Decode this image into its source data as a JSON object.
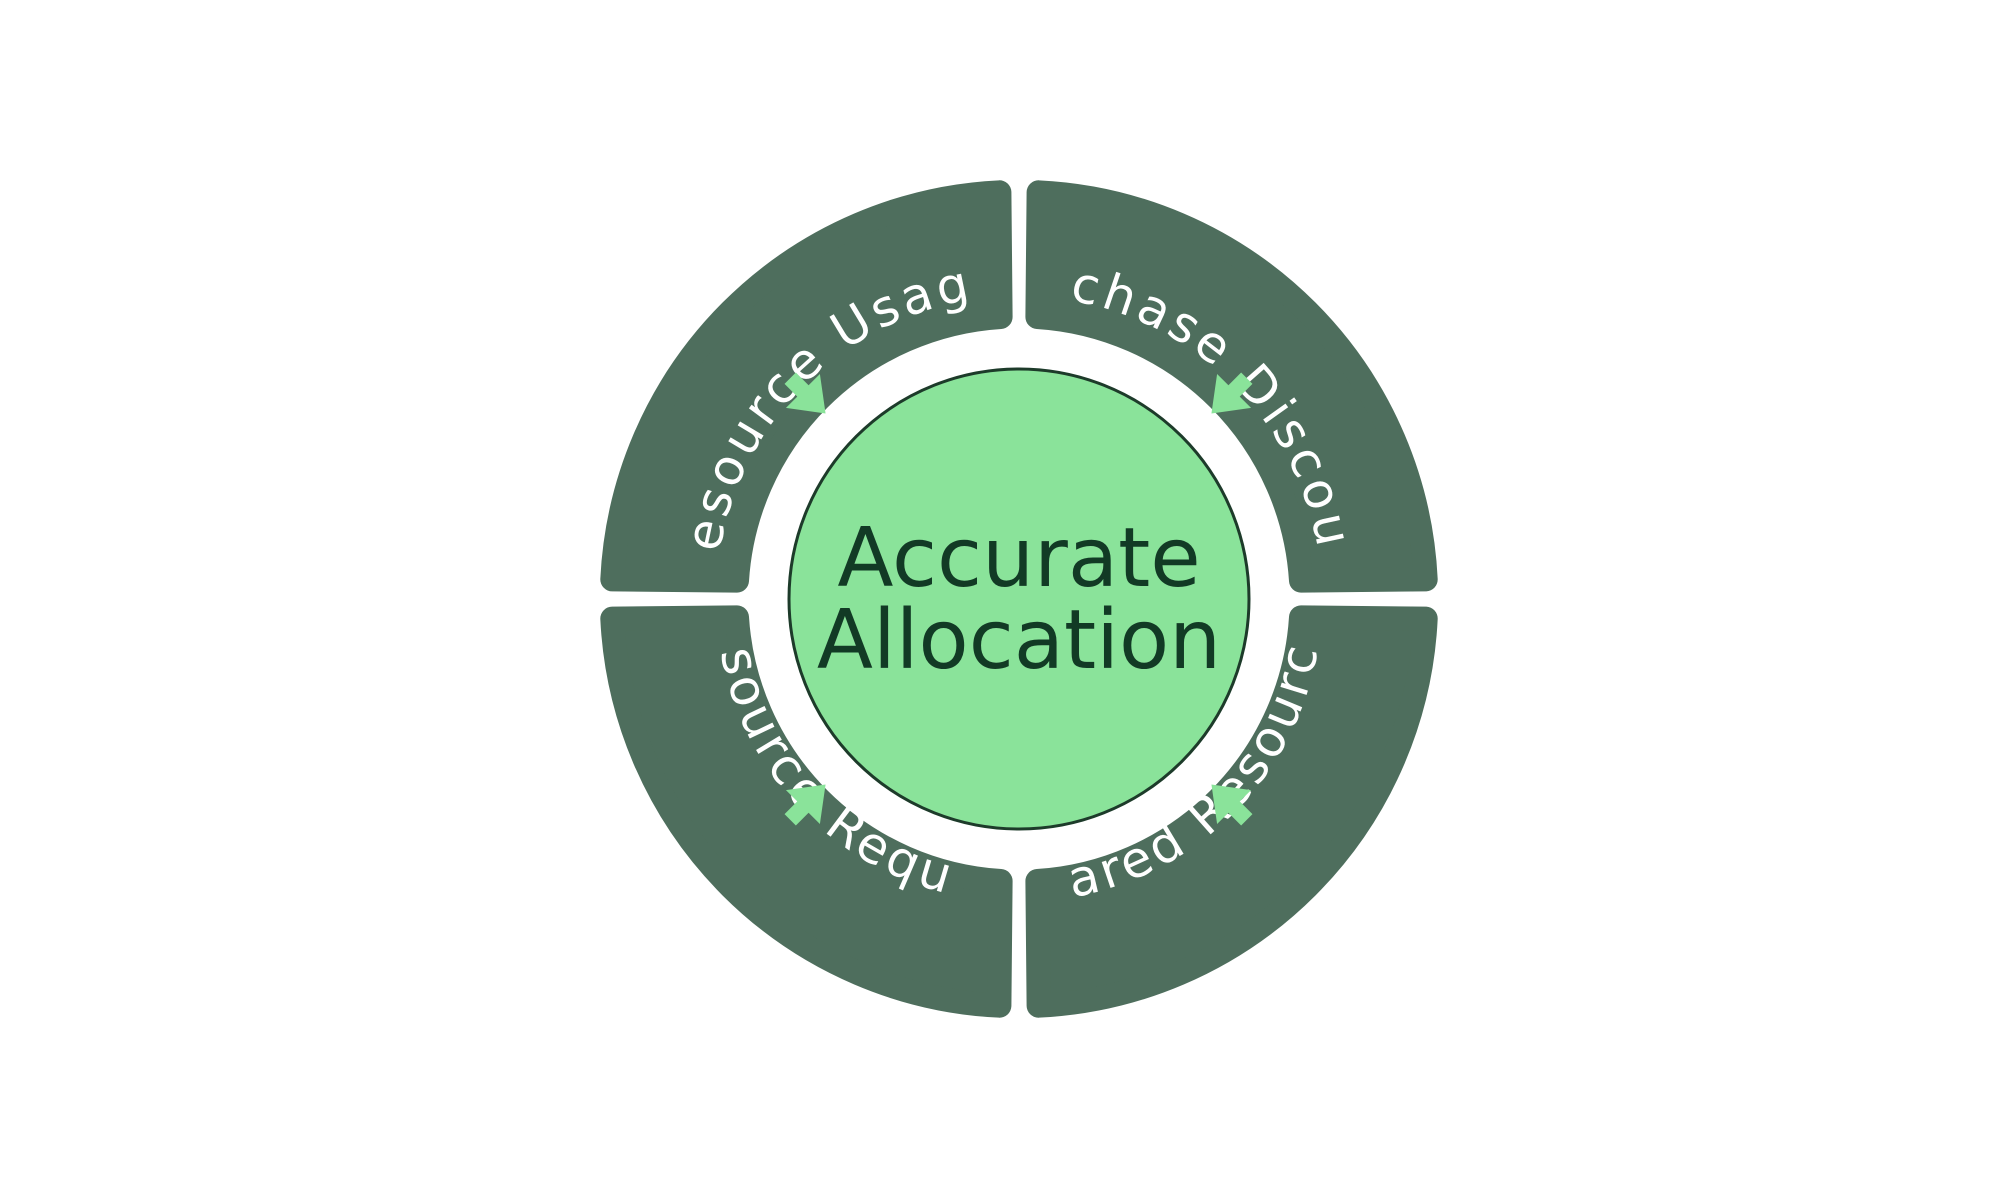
{
  "center": {
    "line1": "Accurate",
    "line2": "Allocation"
  },
  "segments": {
    "resource_usage": "Resource Usage",
    "purchase_discounts": "Purchase Discounts",
    "resource_request": "Resource Request",
    "shared_resources": "Shared Resources"
  },
  "colors": {
    "segment_fill": "#4e6e5d",
    "center_fill": "#8ae39a",
    "center_stroke": "#1d3b2a",
    "arrow_fill": "#8ae39a",
    "label_text": "#ffffff",
    "center_text": "#123a25"
  },
  "icons": {
    "arrows": [
      "arrow-down-right-icon",
      "arrow-down-left-icon",
      "arrow-up-right-icon",
      "arrow-up-left-icon"
    ]
  }
}
